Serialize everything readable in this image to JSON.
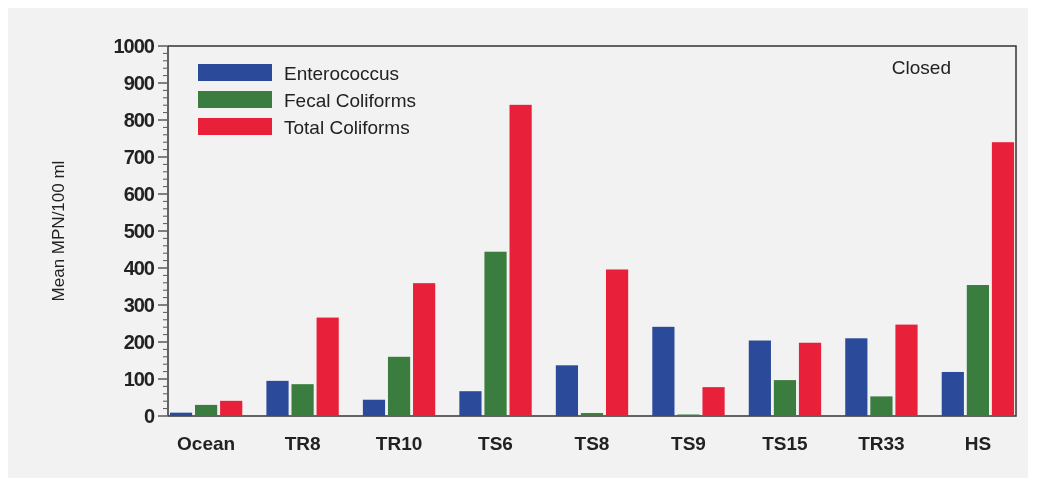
{
  "chart_data": {
    "type": "bar",
    "ylabel": "Mean MPN/100 ml",
    "annotations": [
      "Closed"
    ],
    "categories": [
      "Ocean",
      "TR8",
      "TR10",
      "TS6",
      "TS8",
      "TS9",
      "TS15",
      "TR33",
      "HS"
    ],
    "series": [
      {
        "name": "Enterococcus",
        "color": "#2b4a9a",
        "values": [
          9,
          95,
          44,
          67,
          137,
          241,
          204,
          210,
          119
        ]
      },
      {
        "name": "Fecal Coliforms",
        "color": "#3a7d3e",
        "values": [
          30,
          86,
          160,
          444,
          8,
          4,
          97,
          53,
          354
        ]
      },
      {
        "name": "Total Coliforms",
        "color": "#e8203a",
        "values": [
          41,
          266,
          359,
          841,
          396,
          78,
          198,
          247,
          740
        ]
      }
    ],
    "ylim": [
      0,
      1000
    ],
    "yticks": [
      0,
      100,
      200,
      300,
      400,
      500,
      600,
      700,
      800,
      900,
      1000
    ],
    "grid": false,
    "legend": "top left"
  }
}
